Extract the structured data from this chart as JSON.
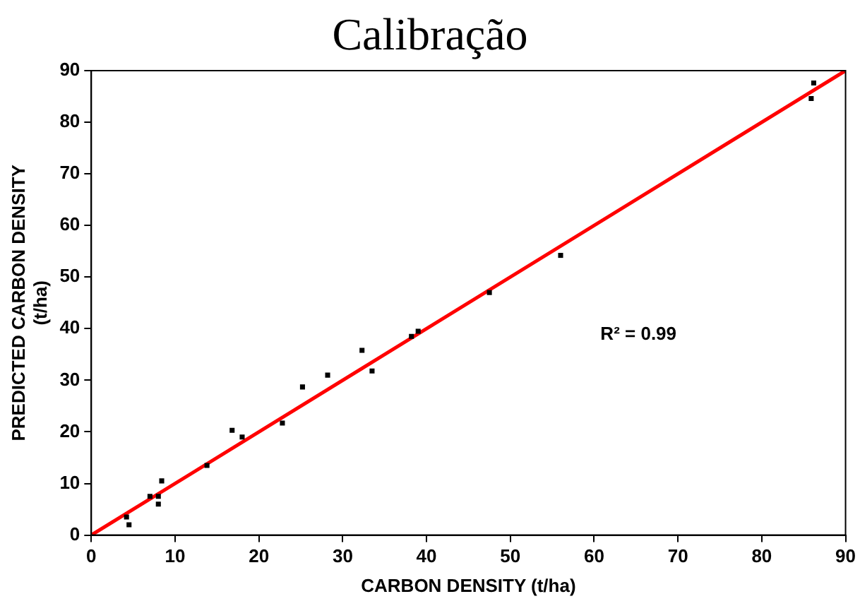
{
  "chart_data": {
    "type": "scatter",
    "title": "Calibração",
    "xlabel": "CARBON DENSITY (t/ha)",
    "ylabel": [
      "PREDICTED CARBON DENSITY",
      "(t/ha)"
    ],
    "xlim": [
      0,
      90
    ],
    "ylim": [
      0,
      90
    ],
    "xticks": [
      0,
      10,
      20,
      30,
      40,
      50,
      60,
      70,
      80,
      90
    ],
    "yticks": [
      0,
      10,
      20,
      30,
      40,
      50,
      60,
      70,
      80,
      90
    ],
    "grid": false,
    "legend": false,
    "annotations": [
      "R² = 0.99"
    ],
    "series": [
      {
        "marker": "square",
        "color": "#000000",
        "x": [
          4.2,
          4.5,
          7,
          8,
          8,
          8.4,
          13.8,
          16.8,
          18,
          22.8,
          25.2,
          28.2,
          32.3,
          33.5,
          38.2,
          39,
          47.5,
          56,
          85.9,
          86.2
        ],
        "values": [
          3.5,
          2,
          7.5,
          6,
          7.5,
          10.5,
          13.5,
          20.3,
          19,
          21.7,
          28.7,
          31,
          35.8,
          31.8,
          38.5,
          39.5,
          47,
          54.2,
          84.6,
          87.6
        ]
      },
      {
        "type": "line",
        "color": "#ff0000",
        "x": [
          0,
          90
        ],
        "values": [
          0,
          90
        ],
        "line_style": "solid"
      }
    ]
  }
}
